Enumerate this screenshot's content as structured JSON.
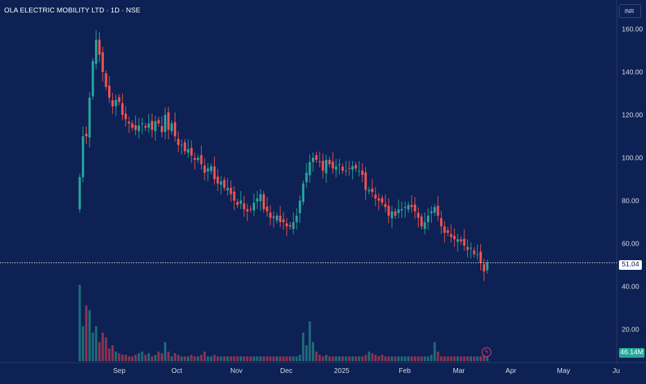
{
  "header": {
    "title": "OLA ELECTRIC MOBILITY LTD · 1D · NSE",
    "currency": "INR"
  },
  "price_tag": "51.04",
  "volume_tag": "46.14M",
  "icons": {
    "flash": "lightning-icon"
  },
  "colors": {
    "background": "#0d2154",
    "up": "#26a69a",
    "down": "#ef5350",
    "volume_up": "#1f6b7a",
    "volume_down": "#8a3450",
    "axis_text": "#d6dbe6",
    "price_line": "#ffffff"
  },
  "chart_data": {
    "type": "candlestick",
    "title": "OLA ELECTRIC MOBILITY LTD · 1D · NSE",
    "y_axis": {
      "ticks": [
        "160.00",
        "140.00",
        "120.00",
        "100.00",
        "80.00",
        "60.00",
        "40.00",
        "20.00"
      ],
      "range": [
        11,
        171
      ]
    },
    "x_axis": {
      "ticks": [
        "Sep",
        "Oct",
        "Nov",
        "Dec",
        "2025",
        "Feb",
        "Mar",
        "Apr",
        "May",
        "Ju"
      ]
    },
    "last_price": 51.04,
    "last_volume": "46.14M",
    "closes": [
      91,
      110,
      110,
      128,
      145,
      155,
      148,
      140,
      133,
      128,
      124,
      127,
      126,
      120,
      118,
      116,
      114,
      113,
      115,
      116,
      114,
      116,
      113,
      117,
      116,
      112,
      120,
      113,
      116,
      110,
      106,
      106,
      103,
      104,
      101,
      99,
      100,
      97,
      93,
      95,
      96,
      90,
      88,
      89,
      86,
      86,
      83,
      80,
      78,
      80,
      76,
      75,
      76,
      79,
      81,
      83,
      76,
      75,
      72,
      72,
      73,
      70,
      70,
      68,
      68,
      70,
      73,
      80,
      88,
      93,
      98,
      100,
      99,
      98,
      94,
      99,
      97,
      95,
      96,
      97,
      94,
      94,
      95,
      96,
      95,
      94,
      92,
      85,
      85,
      84,
      81,
      80,
      79,
      77,
      73,
      75,
      73,
      76,
      76,
      77,
      78,
      77,
      75,
      72,
      68,
      70,
      73,
      75,
      77,
      73,
      68,
      65,
      65,
      63,
      62,
      62,
      61,
      59,
      57,
      58,
      55,
      55,
      51,
      47,
      51
    ],
    "volumes": [
      48,
      22,
      35,
      32,
      18,
      22,
      12,
      18,
      15,
      8,
      10,
      6,
      5,
      4,
      4,
      3,
      3,
      4,
      5,
      6,
      4,
      5,
      3,
      4,
      6,
      5,
      12,
      6,
      3,
      5,
      4,
      3,
      3,
      3,
      4,
      3,
      3,
      4,
      6,
      3,
      3,
      4,
      3,
      3,
      3,
      3,
      3,
      3,
      3,
      3,
      3,
      3,
      3,
      3,
      3,
      3,
      3,
      3,
      3,
      3,
      3,
      3,
      3,
      3,
      3,
      3,
      3,
      4,
      18,
      10,
      25,
      12,
      6,
      4,
      3,
      4,
      3,
      3,
      3,
      3,
      3,
      3,
      3,
      3,
      3,
      3,
      3,
      4,
      6,
      5,
      4,
      3,
      4,
      3,
      3,
      3,
      3,
      3,
      3,
      3,
      3,
      3,
      3,
      3,
      3,
      3,
      3,
      4,
      12,
      6,
      3,
      3,
      3,
      3,
      3,
      3,
      3,
      3,
      3,
      3,
      3,
      3,
      3,
      4,
      5
    ]
  }
}
